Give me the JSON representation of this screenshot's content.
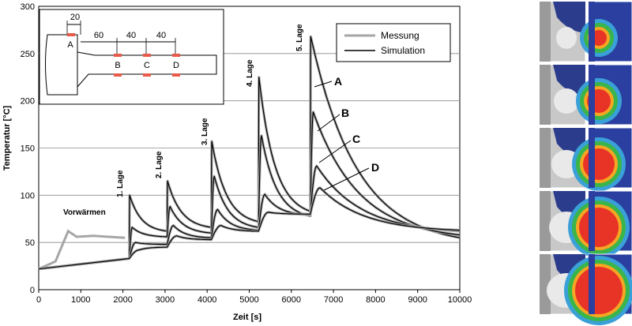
{
  "chart_data": {
    "type": "line",
    "xlabel": "Zeit [s]",
    "ylabel": "Temperatur [°C]",
    "xlim": [
      0,
      10000
    ],
    "ylim": [
      0,
      300
    ],
    "xticks": [
      "0",
      "1000",
      "2000",
      "3000",
      "4000",
      "5000",
      "6000",
      "7000",
      "8000",
      "9000",
      "10000"
    ],
    "yticks": [
      "0",
      "50",
      "100",
      "150",
      "200",
      "250",
      "300"
    ],
    "legend_position": "top-right",
    "legend": [
      {
        "name": "Messung",
        "color": "#a6a6a6"
      },
      {
        "name": "Simulation",
        "color": "#000000"
      }
    ],
    "annotations": {
      "preheat": "Vorwärmen",
      "layers": [
        "1. Lage",
        "2. Lage",
        "3. Lage",
        "4. Lage",
        "5. Lage"
      ],
      "curve_labels": [
        "A",
        "B",
        "C",
        "D"
      ]
    },
    "layer_times": [
      2150,
      3050,
      4100,
      5220,
      6450
    ],
    "series": [
      {
        "name": "A",
        "x": [
          0,
          2150,
          2160,
          3050,
          3060,
          4100,
          4110,
          5220,
          5230,
          6450,
          6460,
          10000
        ],
        "y": [
          22,
          33,
          100,
          62,
          115,
          66,
          157,
          72,
          225,
          83,
          268,
          55
        ]
      },
      {
        "name": "B",
        "x": [
          0,
          2150,
          2220,
          3050,
          3120,
          4100,
          4170,
          5220,
          5290,
          6450,
          6520,
          10000
        ],
        "y": [
          22,
          33,
          66,
          56,
          88,
          60,
          120,
          66,
          163,
          78,
          188,
          58
        ]
      },
      {
        "name": "C",
        "x": [
          0,
          2150,
          2300,
          3050,
          3200,
          4100,
          4250,
          5220,
          5370,
          6450,
          6600,
          10000
        ],
        "y": [
          22,
          33,
          50,
          48,
          68,
          55,
          85,
          63,
          101,
          79,
          131,
          62
        ]
      },
      {
        "name": "D",
        "x": [
          0,
          2150,
          2380,
          3050,
          3280,
          4100,
          4330,
          5220,
          5450,
          6450,
          6680,
          10000
        ],
        "y": [
          22,
          33,
          42,
          45,
          57,
          53,
          68,
          62,
          82,
          80,
          108,
          63
        ]
      }
    ],
    "preheat_measurement": {
      "x": [
        0,
        400,
        700,
        900,
        1300,
        2050
      ],
      "y": [
        22,
        30,
        62,
        56,
        57,
        55
      ]
    },
    "inset": {
      "points": [
        "A",
        "B",
        "C",
        "D"
      ],
      "dimensions": [
        "20",
        "60",
        "40",
        "40"
      ]
    }
  },
  "side_panel": {
    "rows": 5,
    "colors": {
      "molten": "#e83426",
      "hot": "#f5a623",
      "warm": "#39b54a",
      "cool": "#3aa0d8",
      "cold": "#2b3fa0"
    }
  }
}
